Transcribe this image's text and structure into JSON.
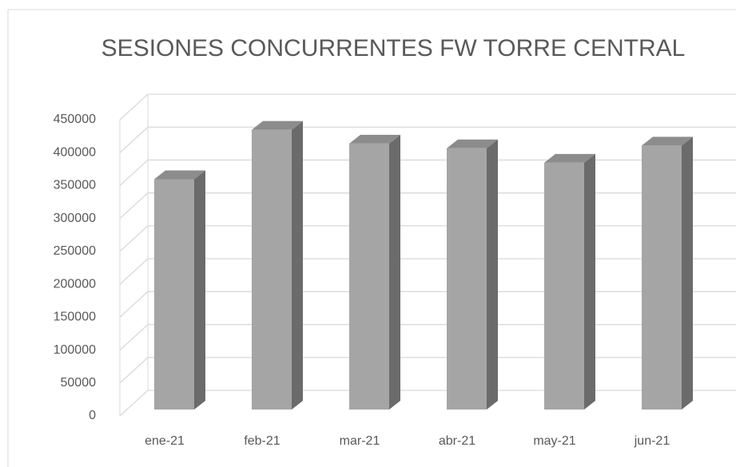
{
  "chart_data": {
    "type": "bar3d",
    "title": "SESIONES CONCURRENTES FW TORRE CENTRAL",
    "categories": [
      "ene-21",
      "feb-21",
      "mar-21",
      "abr-21",
      "may-21",
      "jun-21"
    ],
    "values": [
      350000,
      425000,
      404000,
      397000,
      375000,
      401000
    ],
    "color": "#a5a5a5",
    "ylim": [
      0,
      450000
    ],
    "yticks": [
      0,
      50000,
      100000,
      150000,
      200000,
      250000,
      300000,
      350000,
      400000,
      450000
    ],
    "grid": true
  }
}
